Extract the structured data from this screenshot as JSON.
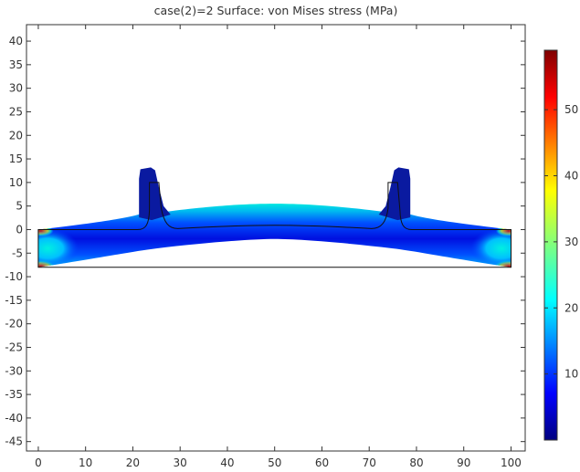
{
  "chart_data": {
    "type": "heatmap",
    "title": "case(2)=2   Surface: von Mises stress (MPa)",
    "xlabel": "",
    "ylabel": "",
    "xlim": [
      -2.5,
      103
    ],
    "ylim": [
      -47,
      43.5
    ],
    "x_ticks": [
      0,
      10,
      20,
      30,
      40,
      50,
      60,
      70,
      80,
      90,
      100
    ],
    "y_ticks": [
      40,
      35,
      30,
      25,
      20,
      15,
      10,
      5,
      0,
      -5,
      -10,
      -15,
      -20,
      -25,
      -30,
      -35,
      -40,
      -45
    ],
    "colorbar": {
      "min": 0,
      "max": 59,
      "ticks": [
        10,
        20,
        30,
        40,
        50
      ],
      "colormap": "rainbow (dark blue to dark red)"
    },
    "undeformed_geometry": {
      "beam_left": [
        0,
        0
      ],
      "beam_right": [
        100,
        0
      ],
      "bottom_y": -8,
      "left_post_x": [
        23.5,
        25.5,
        26
      ],
      "right_post_x": [
        74,
        76
      ],
      "post_top_y": 10
    },
    "deformed_shape": {
      "arch_center_top_y": 5.5,
      "arch_center_bottom_y": -2,
      "end_top_y": 0,
      "end_bottom_y": -8,
      "post_top_y": 13
    },
    "stress_regions": [
      {
        "region": "beam ends near supports",
        "approx_stress": 55
      },
      {
        "region": "upper arch surface",
        "approx_stress": 22
      },
      {
        "region": "posts",
        "approx_stress": 4
      }
    ]
  }
}
